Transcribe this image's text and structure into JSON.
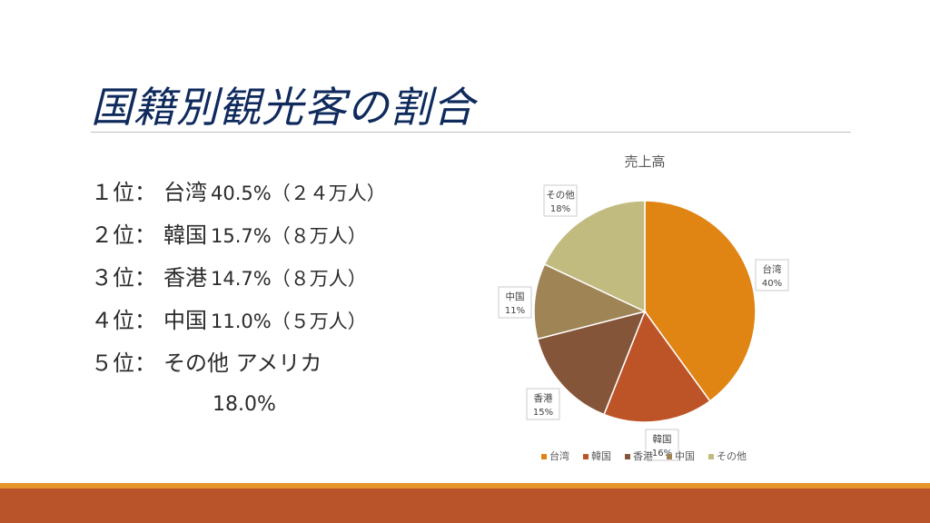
{
  "slide": {
    "title": "国籍別観光客の割合",
    "ranks": [
      {
        "label": "１位：",
        "name": "台湾",
        "detail": "40.5%（２４万人）"
      },
      {
        "label": "２位：",
        "name": "韓国",
        "detail": "15.7%（８万人）"
      },
      {
        "label": "３位：",
        "name": "香港",
        "detail": "14.7%（８万人）"
      },
      {
        "label": "４位：",
        "name": "中国",
        "detail": "11.0%（５万人）"
      },
      {
        "label": "５位：",
        "name": "その他 アメリカ",
        "detail": ""
      }
    ],
    "extra_value": "18.0%"
  },
  "chart_data": {
    "type": "pie",
    "title": "売上高",
    "categories": [
      "台湾",
      "韓国",
      "香港",
      "中国",
      "その他"
    ],
    "values": [
      40,
      16,
      15,
      11,
      18
    ],
    "data_labels": [
      "40%",
      "16%",
      "15%",
      "11%",
      "18%"
    ],
    "colors": [
      "#e08414",
      "#bd5428",
      "#85553a",
      "#9f8556",
      "#c2bb80"
    ],
    "legend_placement": "bottom"
  }
}
